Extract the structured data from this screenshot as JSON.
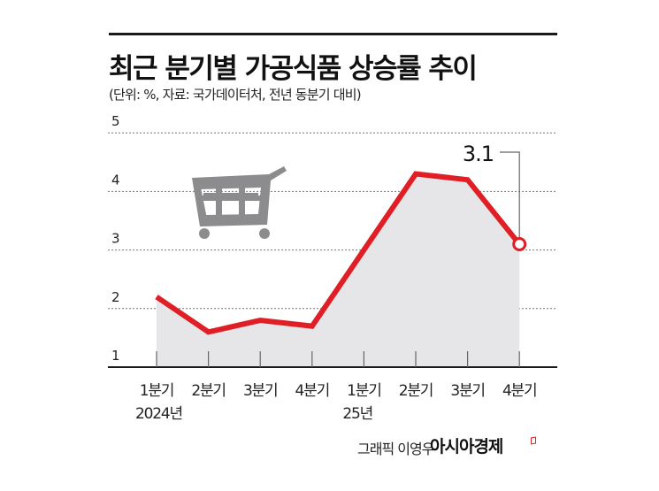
{
  "header": {
    "title": "최근 분기별 가공식품 상승률 추이",
    "subtitle": "(단위: %, 자료: 국가데이터처, 전년 동분기 대비)"
  },
  "chart_data": {
    "type": "line",
    "title": "최근 분기별 가공식품 상승률 추이",
    "subtitle": "(단위: %, 자료: 국가데이터처, 전년 동분기 대비)",
    "xlabel": "",
    "ylabel": "%",
    "ylim": [
      1,
      5
    ],
    "yticks": [
      1,
      2,
      3,
      4,
      5
    ],
    "grid": "horizontal dotted",
    "categories": [
      "2024 1분기",
      "2024 2분기",
      "2024 3분기",
      "2024 4분기",
      "2025 1분기",
      "2025 2분기",
      "2025 3분기",
      "2025 4분기"
    ],
    "tick_labels": [
      {
        "line1": "1분기",
        "line2": "2024년"
      },
      {
        "line1": "2분기",
        "line2": ""
      },
      {
        "line1": "3분기",
        "line2": ""
      },
      {
        "line1": "4분기",
        "line2": ""
      },
      {
        "line1": "1분기",
        "line2": "25년"
      },
      {
        "line1": "2분기",
        "line2": ""
      },
      {
        "line1": "3분기",
        "line2": ""
      },
      {
        "line1": "4분기",
        "line2": ""
      }
    ],
    "series": [
      {
        "name": "가공식품 상승률",
        "values": [
          2.2,
          1.6,
          1.8,
          1.7,
          3.0,
          4.3,
          4.2,
          3.1
        ],
        "color": "#e01e25"
      }
    ],
    "annotations": [
      {
        "label": "3.1",
        "index": 7
      }
    ]
  },
  "colors": {
    "line": "#e01e25",
    "area": "#e6e6e8",
    "grid": "#777777",
    "cart": "#8c8c8e"
  },
  "decor": {
    "icon": "shopping-cart-icon"
  },
  "footer": {
    "credit": "그래픽 이영우",
    "brand": "아시아경제"
  }
}
